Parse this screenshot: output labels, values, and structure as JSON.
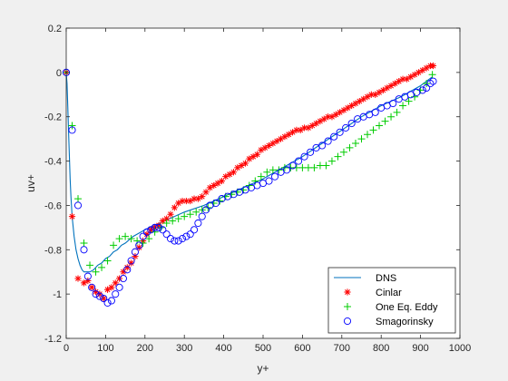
{
  "chart_data": {
    "type": "line",
    "xlabel": "y+",
    "ylabel": "uv+",
    "xlim": [
      0,
      1000
    ],
    "ylim": [
      -1.2,
      0.2
    ],
    "xticks": [
      0,
      100,
      200,
      300,
      400,
      500,
      600,
      700,
      800,
      900,
      1000
    ],
    "xtick_labels": [
      "0",
      "100",
      "200",
      "300",
      "400",
      "500",
      "600",
      "700",
      "800",
      "900",
      "1000"
    ],
    "yticks": [
      0.2,
      0,
      -0.2,
      -0.4,
      -0.6,
      -0.8,
      -1,
      -1.2
    ],
    "ytick_labels": [
      "0.2",
      "0",
      "-0.2",
      "-0.4",
      "-0.6",
      "-0.8",
      "-1",
      "-1.2"
    ],
    "grid": false,
    "legend_position": "bottom-right",
    "series": [
      {
        "name": "DNS",
        "style": "line",
        "color": "#0072bd",
        "x": [
          0,
          2,
          4,
          6,
          8,
          10,
          12,
          15,
          20,
          25,
          30,
          35,
          40,
          45,
          50,
          60,
          70,
          80,
          90,
          100,
          110,
          120,
          130,
          140,
          150,
          170,
          200,
          250,
          300,
          350,
          400,
          450,
          500,
          550,
          600,
          650,
          700,
          750,
          800,
          850,
          900,
          930
        ],
        "y": [
          0,
          -0.05,
          -0.15,
          -0.27,
          -0.38,
          -0.48,
          -0.56,
          -0.65,
          -0.74,
          -0.8,
          -0.84,
          -0.87,
          -0.89,
          -0.9,
          -0.9,
          -0.9,
          -0.89,
          -0.87,
          -0.86,
          -0.84,
          -0.83,
          -0.81,
          -0.8,
          -0.78,
          -0.77,
          -0.74,
          -0.71,
          -0.67,
          -0.63,
          -0.6,
          -0.56,
          -0.52,
          -0.48,
          -0.43,
          -0.38,
          -0.32,
          -0.26,
          -0.2,
          -0.15,
          -0.11,
          -0.06,
          -0.02
        ]
      },
      {
        "name": "Cinlar",
        "style": "star",
        "color": "#ff0000",
        "x": [
          0,
          15,
          30,
          45,
          55,
          65,
          75,
          85,
          95,
          105,
          115,
          125,
          135,
          145,
          155,
          165,
          175,
          185,
          195,
          205,
          215,
          225,
          235,
          245,
          255,
          265,
          275,
          285,
          295,
          305,
          315,
          325,
          335,
          345,
          355,
          365,
          375,
          385,
          395,
          405,
          415,
          425,
          435,
          445,
          455,
          465,
          475,
          485,
          495,
          505,
          515,
          525,
          535,
          545,
          555,
          565,
          575,
          585,
          595,
          605,
          615,
          625,
          635,
          645,
          655,
          665,
          675,
          685,
          695,
          705,
          715,
          725,
          735,
          745,
          755,
          765,
          775,
          785,
          795,
          805,
          815,
          825,
          835,
          845,
          855,
          865,
          875,
          885,
          895,
          905,
          915,
          925,
          932
        ],
        "y": [
          0,
          -0.65,
          -0.93,
          -0.95,
          -0.94,
          -0.97,
          -0.99,
          -1.0,
          -1.02,
          -0.98,
          -0.97,
          -0.95,
          -0.93,
          -0.9,
          -0.88,
          -0.86,
          -0.83,
          -0.79,
          -0.76,
          -0.73,
          -0.71,
          -0.7,
          -0.69,
          -0.67,
          -0.66,
          -0.64,
          -0.61,
          -0.59,
          -0.58,
          -0.58,
          -0.58,
          -0.57,
          -0.57,
          -0.56,
          -0.54,
          -0.52,
          -0.51,
          -0.5,
          -0.49,
          -0.47,
          -0.46,
          -0.45,
          -0.43,
          -0.42,
          -0.41,
          -0.39,
          -0.38,
          -0.37,
          -0.35,
          -0.34,
          -0.33,
          -0.32,
          -0.31,
          -0.3,
          -0.29,
          -0.28,
          -0.27,
          -0.26,
          -0.26,
          -0.25,
          -0.25,
          -0.24,
          -0.23,
          -0.22,
          -0.21,
          -0.2,
          -0.2,
          -0.19,
          -0.18,
          -0.17,
          -0.16,
          -0.15,
          -0.14,
          -0.13,
          -0.12,
          -0.11,
          -0.1,
          -0.1,
          -0.09,
          -0.08,
          -0.07,
          -0.06,
          -0.05,
          -0.04,
          -0.03,
          -0.03,
          -0.02,
          -0.01,
          0.0,
          0.01,
          0.02,
          0.03,
          0.03
        ]
      },
      {
        "name": "One Eq. Eddy",
        "style": "plus",
        "color": "#00cc00",
        "x": [
          0,
          15,
          30,
          45,
          60,
          75,
          90,
          105,
          120,
          135,
          150,
          165,
          180,
          195,
          210,
          225,
          240,
          255,
          270,
          285,
          300,
          315,
          330,
          345,
          360,
          375,
          390,
          405,
          420,
          435,
          450,
          465,
          480,
          495,
          510,
          525,
          540,
          555,
          570,
          585,
          600,
          615,
          630,
          645,
          660,
          675,
          690,
          705,
          720,
          735,
          750,
          765,
          780,
          795,
          810,
          825,
          840,
          855,
          870,
          885,
          900,
          915,
          930
        ],
        "y": [
          0,
          -0.24,
          -0.57,
          -0.77,
          -0.87,
          -0.9,
          -0.88,
          -0.85,
          -0.78,
          -0.75,
          -0.74,
          -0.75,
          -0.76,
          -0.77,
          -0.75,
          -0.72,
          -0.7,
          -0.68,
          -0.67,
          -0.66,
          -0.65,
          -0.64,
          -0.63,
          -0.62,
          -0.61,
          -0.59,
          -0.58,
          -0.56,
          -0.55,
          -0.54,
          -0.53,
          -0.51,
          -0.49,
          -0.47,
          -0.45,
          -0.44,
          -0.44,
          -0.43,
          -0.43,
          -0.43,
          -0.43,
          -0.43,
          -0.43,
          -0.42,
          -0.42,
          -0.4,
          -0.38,
          -0.36,
          -0.34,
          -0.32,
          -0.3,
          -0.28,
          -0.26,
          -0.24,
          -0.22,
          -0.2,
          -0.18,
          -0.15,
          -0.13,
          -0.11,
          -0.08,
          -0.05,
          -0.01
        ]
      },
      {
        "name": "Smagorinsky",
        "style": "circle",
        "color": "#0000ff",
        "x": [
          0,
          15,
          30,
          45,
          55,
          65,
          75,
          85,
          95,
          105,
          115,
          125,
          135,
          145,
          155,
          165,
          175,
          185,
          195,
          205,
          215,
          225,
          235,
          245,
          255,
          265,
          275,
          285,
          295,
          305,
          315,
          325,
          335,
          345,
          355,
          365,
          380,
          395,
          410,
          425,
          440,
          455,
          470,
          485,
          500,
          515,
          530,
          545,
          560,
          575,
          590,
          605,
          620,
          635,
          650,
          665,
          680,
          695,
          710,
          725,
          740,
          755,
          770,
          785,
          800,
          815,
          830,
          845,
          860,
          875,
          890,
          905,
          915,
          925,
          932
        ],
        "y": [
          0,
          -0.26,
          -0.6,
          -0.8,
          -0.92,
          -0.97,
          -1.0,
          -1.01,
          -1.02,
          -1.04,
          -1.03,
          -1.0,
          -0.97,
          -0.93,
          -0.89,
          -0.85,
          -0.81,
          -0.78,
          -0.74,
          -0.72,
          -0.71,
          -0.7,
          -0.7,
          -0.71,
          -0.73,
          -0.75,
          -0.76,
          -0.76,
          -0.75,
          -0.74,
          -0.73,
          -0.71,
          -0.68,
          -0.65,
          -0.62,
          -0.6,
          -0.59,
          -0.57,
          -0.56,
          -0.55,
          -0.54,
          -0.53,
          -0.52,
          -0.51,
          -0.5,
          -0.49,
          -0.47,
          -0.45,
          -0.44,
          -0.42,
          -0.4,
          -0.38,
          -0.36,
          -0.34,
          -0.33,
          -0.31,
          -0.29,
          -0.27,
          -0.25,
          -0.23,
          -0.21,
          -0.2,
          -0.19,
          -0.18,
          -0.16,
          -0.15,
          -0.14,
          -0.12,
          -0.11,
          -0.1,
          -0.09,
          -0.08,
          -0.07,
          -0.05,
          -0.04
        ]
      }
    ]
  }
}
